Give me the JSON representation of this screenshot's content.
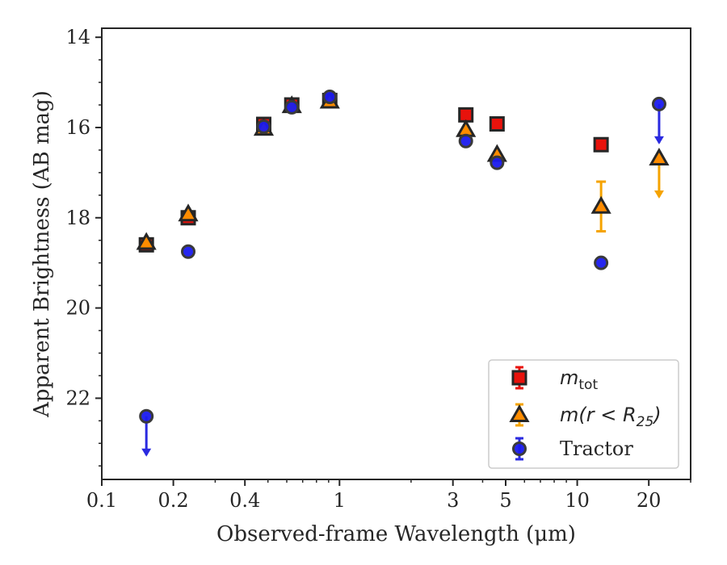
{
  "chart_data": {
    "type": "scatter",
    "xlabel": "Observed-frame Wavelength (μm)",
    "ylabel": "Apparent Brightness (AB mag)",
    "xscale": "log",
    "xlim": [
      0.1,
      30
    ],
    "ylim": [
      23.8,
      13.8
    ],
    "y_inverted": true,
    "grid": false,
    "legend_position": "lower-right",
    "x_ticks": [
      {
        "value": 0.1,
        "label": "0.1"
      },
      {
        "value": 0.2,
        "label": "0.2"
      },
      {
        "value": 0.4,
        "label": "0.4"
      },
      {
        "value": 1,
        "label": "1"
      },
      {
        "value": 3,
        "label": "3"
      },
      {
        "value": 5,
        "label": "5"
      },
      {
        "value": 10,
        "label": "10"
      },
      {
        "value": 20,
        "label": "20"
      }
    ],
    "y_ticks": [
      {
        "value": 14,
        "label": "14"
      },
      {
        "value": 16,
        "label": "16"
      },
      {
        "value": 18,
        "label": "18"
      },
      {
        "value": 20,
        "label": "20"
      },
      {
        "value": 22,
        "label": "22"
      }
    ],
    "series": [
      {
        "name": "m_tot",
        "legend_main": "m",
        "legend_sub": "tot",
        "marker": "square",
        "color": "#e8120c",
        "errcolor": "#e8120c",
        "points": [
          {
            "x": 0.154,
            "y": 18.6
          },
          {
            "x": 0.231,
            "y": 18.0
          },
          {
            "x": 0.48,
            "y": 15.93
          },
          {
            "x": 0.63,
            "y": 15.5
          },
          {
            "x": 0.91,
            "y": 15.4
          },
          {
            "x": 3.4,
            "y": 15.72
          },
          {
            "x": 4.6,
            "y": 15.92
          },
          {
            "x": 12.6,
            "y": 16.38
          }
        ]
      },
      {
        "name": "m(r < R25)",
        "legend_main": "m(r < R",
        "legend_sub": "25",
        "legend_close": ")",
        "marker": "triangle",
        "color": "#ff8c00",
        "errcolor": "#f5a300",
        "points": [
          {
            "x": 0.154,
            "y": 18.55
          },
          {
            "x": 0.231,
            "y": 17.92
          },
          {
            "x": 0.48,
            "y": 16.02
          },
          {
            "x": 0.63,
            "y": 15.52
          },
          {
            "x": 0.91,
            "y": 15.42
          },
          {
            "x": 3.4,
            "y": 16.05
          },
          {
            "x": 4.6,
            "y": 16.6
          },
          {
            "x": 12.6,
            "y": 17.75,
            "err": 0.55
          },
          {
            "x": 22.1,
            "y": 16.68,
            "upper_limit": true
          }
        ]
      },
      {
        "name": "Tractor",
        "legend_main": "Tractor",
        "marker": "circle",
        "color": "#1a1aee",
        "errcolor": "#2a2ae0",
        "points": [
          {
            "x": 0.154,
            "y": 22.4,
            "upper_limit": true
          },
          {
            "x": 0.231,
            "y": 18.75
          },
          {
            "x": 0.48,
            "y": 15.98
          },
          {
            "x": 0.63,
            "y": 15.55
          },
          {
            "x": 0.91,
            "y": 15.32
          },
          {
            "x": 3.4,
            "y": 16.3
          },
          {
            "x": 4.6,
            "y": 16.78
          },
          {
            "x": 12.6,
            "y": 19.0
          },
          {
            "x": 22.1,
            "y": 15.48,
            "upper_limit": true
          }
        ]
      }
    ]
  }
}
